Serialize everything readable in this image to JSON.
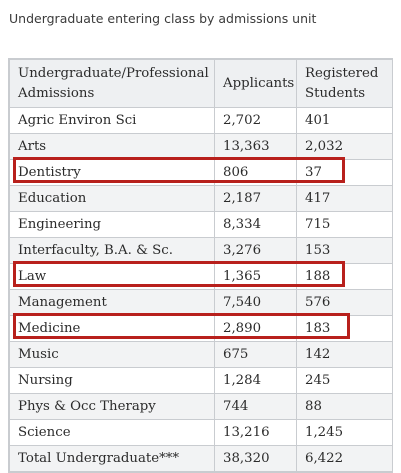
{
  "title": "Undergraduate entering class by admissions unit",
  "table": {
    "headers": [
      "Undergraduate/Professional Admissions",
      "Applicants",
      "Registered Students"
    ],
    "rows": [
      {
        "unit": "Agric Environ Sci",
        "applicants": "2,702",
        "registered": "401"
      },
      {
        "unit": "Arts",
        "applicants": "13,363",
        "registered": "2,032"
      },
      {
        "unit": "Dentistry",
        "applicants": "806",
        "registered": "37"
      },
      {
        "unit": "Education",
        "applicants": "2,187",
        "registered": "417"
      },
      {
        "unit": "Engineering",
        "applicants": "8,334",
        "registered": "715"
      },
      {
        "unit": "Interfaculty, B.A. & Sc.",
        "applicants": "3,276",
        "registered": "153"
      },
      {
        "unit": "Law",
        "applicants": "1,365",
        "registered": "188"
      },
      {
        "unit": "Management",
        "applicants": "7,540",
        "registered": "576"
      },
      {
        "unit": "Medicine",
        "applicants": "2,890",
        "registered": "183"
      },
      {
        "unit": "Music",
        "applicants": "675",
        "registered": "142"
      },
      {
        "unit": "Nursing",
        "applicants": "1,284",
        "registered": "245"
      },
      {
        "unit": "Phys & Occ Therapy",
        "applicants": "744",
        "registered": "88"
      },
      {
        "unit": "Science",
        "applicants": "13,216",
        "registered": "1,245"
      },
      {
        "unit": "Total Undergraduate***",
        "applicants": "38,320",
        "registered": "6,422"
      }
    ]
  },
  "highlight_color": "#b8201c"
}
